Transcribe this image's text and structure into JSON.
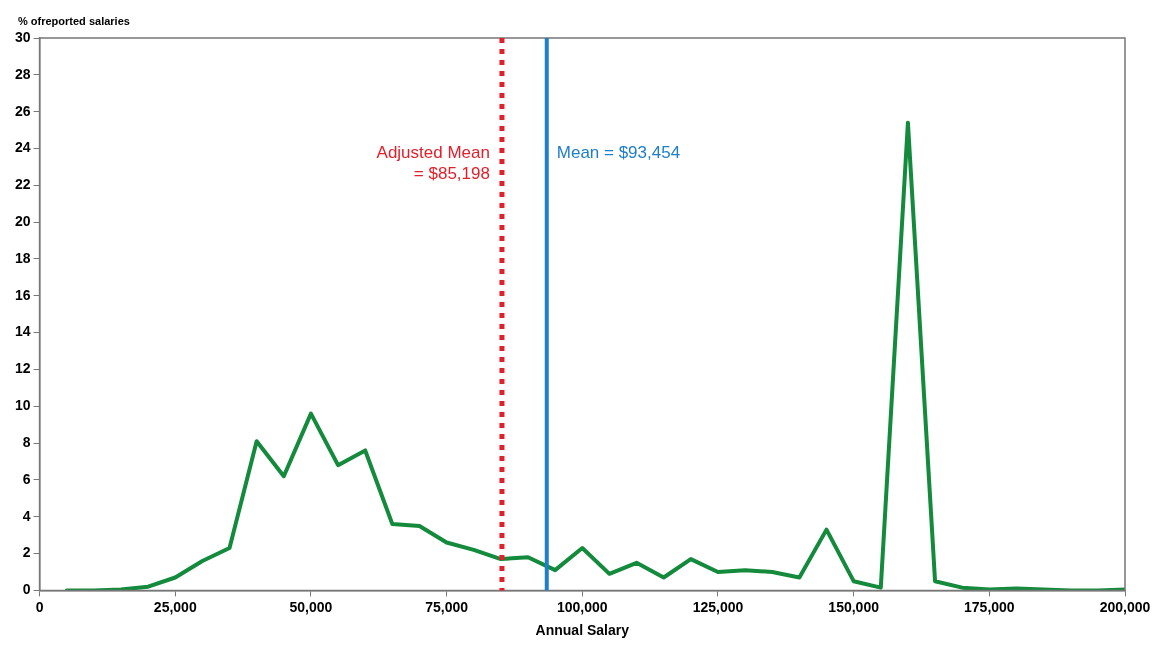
{
  "chart_data": {
    "type": "line",
    "xlabel": "Annual Salary",
    "ylabel": "% ofreported salaries",
    "x": [
      5000,
      10000,
      15000,
      20000,
      25000,
      30000,
      35000,
      40000,
      45000,
      50000,
      55000,
      60000,
      65000,
      70000,
      75000,
      80000,
      85000,
      90000,
      95000,
      100000,
      105000,
      110000,
      115000,
      120000,
      125000,
      130000,
      135000,
      140000,
      145000,
      150000,
      155000,
      160000,
      165000,
      170000,
      175000,
      180000,
      185000,
      190000,
      195000,
      200000
    ],
    "series": [
      {
        "color": "#148a3c",
        "values": [
          0,
          0,
          0.05,
          0.2,
          0.7,
          1.6,
          2.3,
          8.1,
          6.2,
          9.6,
          6.8,
          7.6,
          3.6,
          3.5,
          2.6,
          2.2,
          1.7,
          1.8,
          1.1,
          2.3,
          0.9,
          1.5,
          0.7,
          1.7,
          1.0,
          1.1,
          1.0,
          0.7,
          3.3,
          0.5,
          0.15,
          25.4,
          0.5,
          0.15,
          0.05,
          0.1,
          0.05,
          0,
          0,
          0.05
        ]
      }
    ],
    "xlim": [
      0,
      200000
    ],
    "xticks": [
      0,
      {
        "value": 25000,
        "label": "25,000"
      },
      {
        "value": 50000,
        "label": "50,000"
      },
      {
        "value": 75000,
        "label": "75,000"
      },
      {
        "value": 100000,
        "label": "100,000"
      },
      {
        "value": 125000,
        "label": "125,000"
      },
      {
        "value": 150000,
        "label": "150,000"
      },
      {
        "value": 175000,
        "label": "175,000"
      },
      {
        "value": 200000,
        "label": "200,000"
      }
    ],
    "ylim": [
      0,
      30
    ],
    "yticks": [
      0,
      2,
      4,
      6,
      8,
      10,
      12,
      14,
      16,
      18,
      20,
      22,
      24,
      26,
      28,
      30
    ],
    "ref_lines": [
      {
        "axis": "x",
        "value": 85198,
        "label": "Adjusted Mean\n= $85,198",
        "color": "#e0202a",
        "line_style": "dotted"
      },
      {
        "axis": "x",
        "value": 93454,
        "label": "Mean = $93,454",
        "color": "#1e7ec8",
        "line_style": "solid"
      }
    ],
    "grid": false,
    "legend": false,
    "marker": "none",
    "line_style": "solid"
  }
}
